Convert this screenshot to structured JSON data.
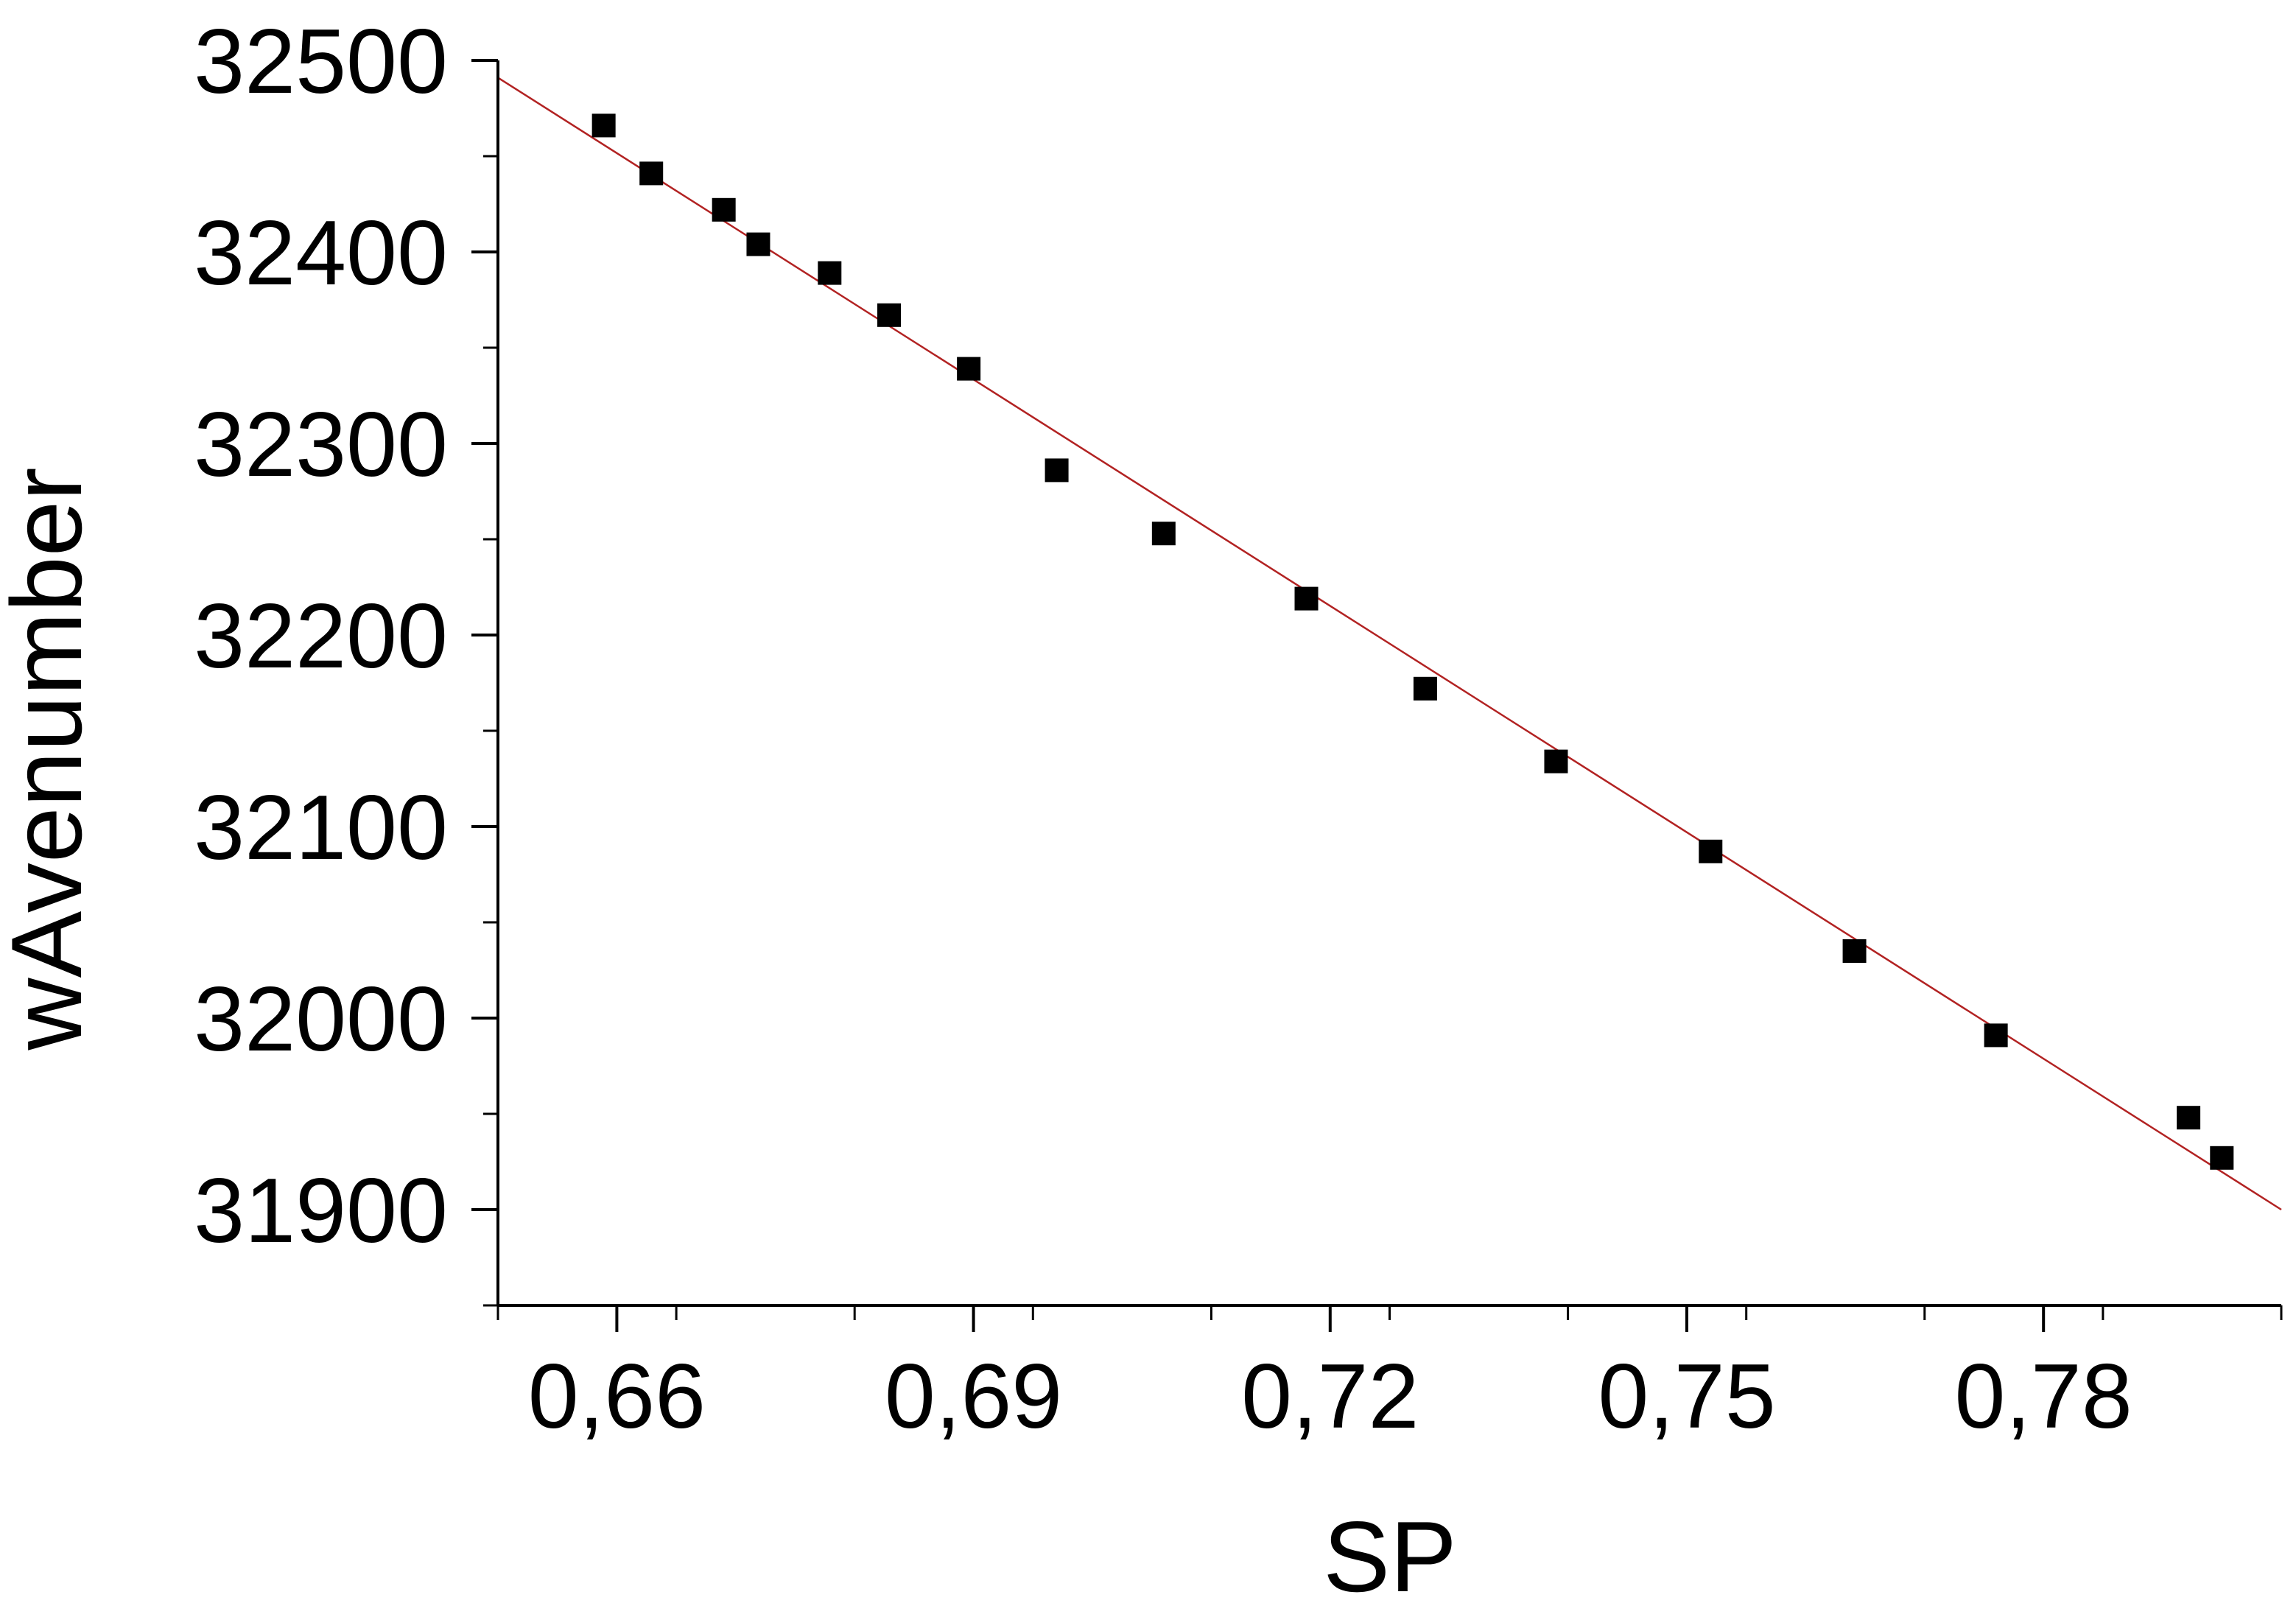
{
  "chart_data": {
    "type": "scatter",
    "title": "",
    "xlabel": "SP",
    "ylabel": "wAvenumber",
    "xlim": [
      0.65,
      0.8
    ],
    "ylim": [
      31850,
      32500
    ],
    "x_ticks": [
      {
        "value": 0.66,
        "label": "0,66"
      },
      {
        "value": 0.69,
        "label": "0,69"
      },
      {
        "value": 0.72,
        "label": "0,72"
      },
      {
        "value": 0.75,
        "label": "0,75"
      },
      {
        "value": 0.78,
        "label": "0,78"
      }
    ],
    "x_minor_tick_step": 0.015,
    "y_ticks": [
      {
        "value": 31900,
        "label": "31900"
      },
      {
        "value": 32000,
        "label": "32000"
      },
      {
        "value": 32100,
        "label": "32100"
      },
      {
        "value": 32200,
        "label": "32200"
      },
      {
        "value": 32300,
        "label": "32300"
      },
      {
        "value": 32400,
        "label": "32400"
      },
      {
        "value": 32500,
        "label": "32500"
      }
    ],
    "y_minor_tick_step": 50,
    "grid": false,
    "legend": "none",
    "points": [
      {
        "x": 0.6589,
        "y": 32466
      },
      {
        "x": 0.6629,
        "y": 32441
      },
      {
        "x": 0.669,
        "y": 32422
      },
      {
        "x": 0.6719,
        "y": 32404
      },
      {
        "x": 0.6779,
        "y": 32389
      },
      {
        "x": 0.6829,
        "y": 32367
      },
      {
        "x": 0.6896,
        "y": 32339
      },
      {
        "x": 0.697,
        "y": 32286
      },
      {
        "x": 0.706,
        "y": 32253
      },
      {
        "x": 0.718,
        "y": 32219
      },
      {
        "x": 0.728,
        "y": 32172
      },
      {
        "x": 0.739,
        "y": 32134
      },
      {
        "x": 0.752,
        "y": 32087
      },
      {
        "x": 0.7641,
        "y": 32035
      },
      {
        "x": 0.776,
        "y": 31991
      },
      {
        "x": 0.7922,
        "y": 31948
      },
      {
        "x": 0.795,
        "y": 31927
      }
    ],
    "fit_line": {
      "x": [
        0.65,
        0.8
      ],
      "y": [
        32491,
        31900
      ]
    },
    "colors": {
      "points": "#000000",
      "fit_line": "#b22222",
      "axis": "#000000"
    }
  }
}
